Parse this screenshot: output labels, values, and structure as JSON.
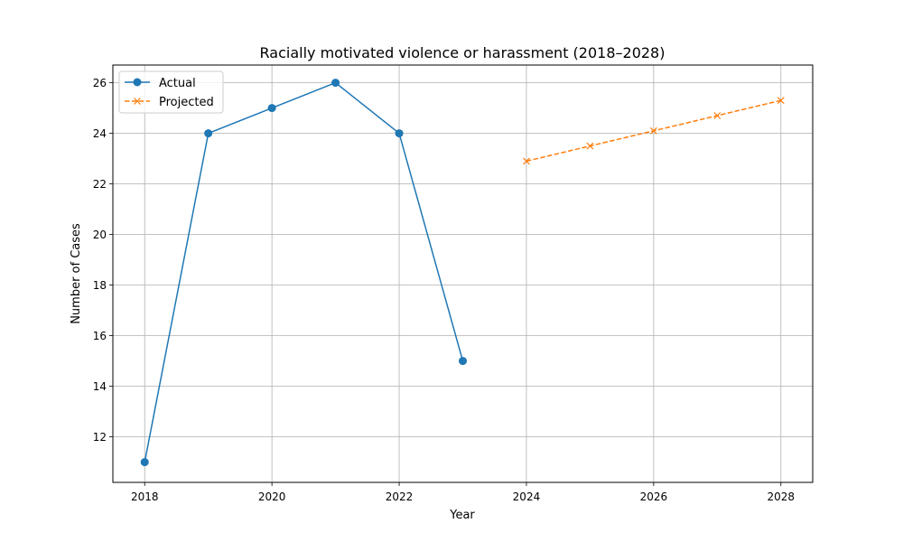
{
  "chart_data": {
    "type": "line",
    "title": "Racially motivated violence or harassment (2018–2028)",
    "xlabel": "Year",
    "ylabel": "Number of Cases",
    "xlim": [
      2017.5,
      2028.5
    ],
    "ylim": [
      10.2,
      26.7
    ],
    "xticks": [
      2018,
      2020,
      2022,
      2024,
      2026,
      2028
    ],
    "yticks": [
      12,
      14,
      16,
      18,
      20,
      22,
      24,
      26
    ],
    "grid": true,
    "legend_position": "top-left",
    "series": [
      {
        "name": "Actual",
        "color": "#1f77b4",
        "marker": "circle",
        "linestyle": "solid",
        "x": [
          2018,
          2019,
          2020,
          2021,
          2022,
          2023
        ],
        "y": [
          11,
          24,
          25,
          26,
          24,
          15
        ]
      },
      {
        "name": "Projected",
        "color": "#ff7f0e",
        "marker": "x",
        "linestyle": "dashed",
        "x": [
          2024,
          2025,
          2026,
          2027,
          2028
        ],
        "y": [
          22.9,
          23.5,
          24.1,
          24.7,
          25.3
        ]
      }
    ]
  }
}
